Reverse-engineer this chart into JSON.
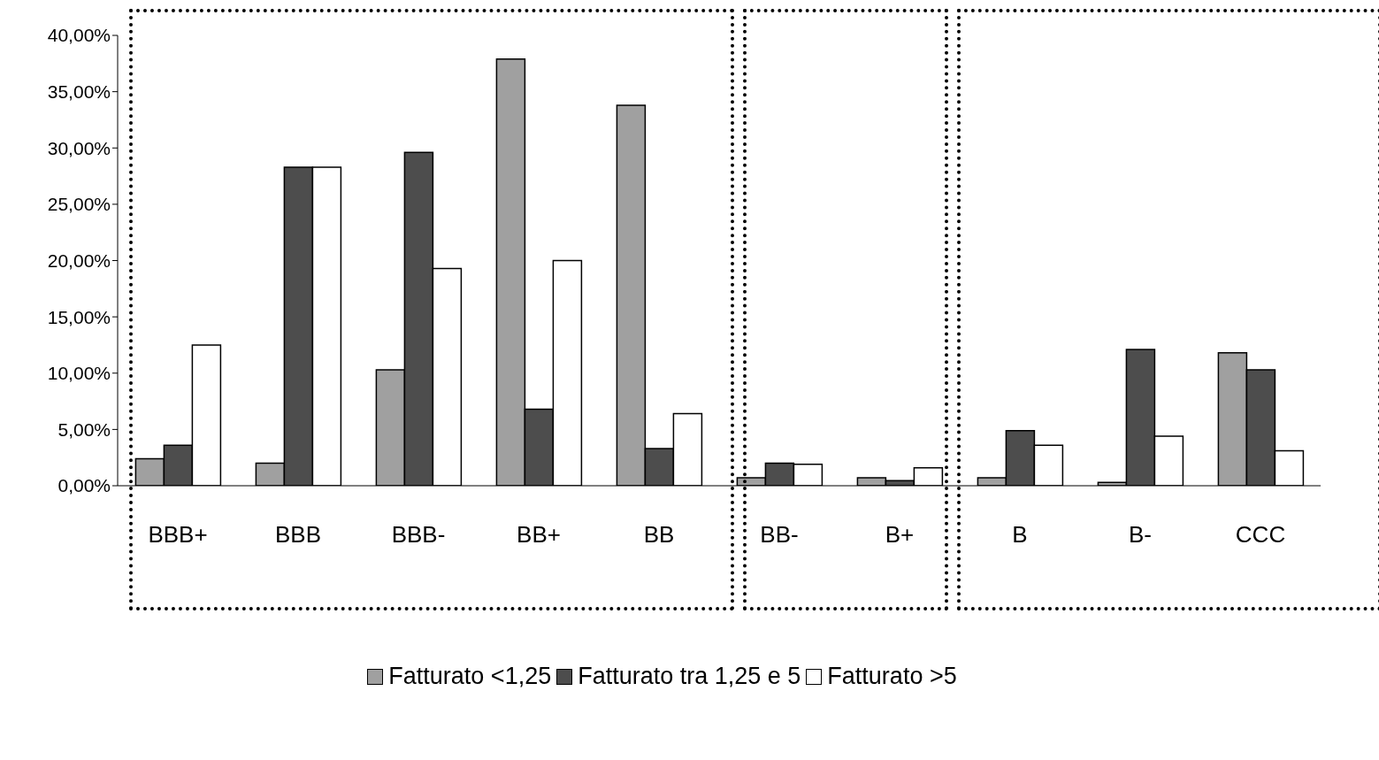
{
  "chart_data": {
    "type": "bar",
    "categories": [
      "BBB+",
      "BBB",
      "BBB-",
      "BB+",
      "BB",
      "BB-",
      "B+",
      "B",
      "B-",
      "CCC"
    ],
    "series": [
      {
        "name": "Fatturato <1,25",
        "color": "#a0a0a0",
        "values": [
          2.4,
          2.0,
          10.3,
          37.9,
          33.8,
          0.7,
          0.7,
          0.7,
          0.3,
          11.8
        ]
      },
      {
        "name": "Fatturato tra 1,25 e 5",
        "color": "#4d4d4d",
        "values": [
          3.6,
          28.3,
          29.6,
          6.8,
          3.3,
          2.0,
          0.45,
          4.9,
          12.1,
          10.3
        ]
      },
      {
        "name": "Fatturato >5",
        "color": "#ffffff",
        "values": [
          12.5,
          28.3,
          19.3,
          20.0,
          6.4,
          1.9,
          1.6,
          3.6,
          4.4,
          3.1
        ]
      }
    ],
    "ylim": [
      0,
      40
    ],
    "yticks": [
      {
        "value": 0,
        "label": "0,00%"
      },
      {
        "value": 5,
        "label": "5,00%"
      },
      {
        "value": 10,
        "label": "10,00%"
      },
      {
        "value": 15,
        "label": "15,00%"
      },
      {
        "value": 20,
        "label": "20,00%"
      },
      {
        "value": 25,
        "label": "25,00%"
      },
      {
        "value": 30,
        "label": "30,00%"
      },
      {
        "value": 35,
        "label": "35,00%"
      },
      {
        "value": 40,
        "label": "40,00%"
      }
    ],
    "grid": false,
    "legend": "bottom"
  }
}
